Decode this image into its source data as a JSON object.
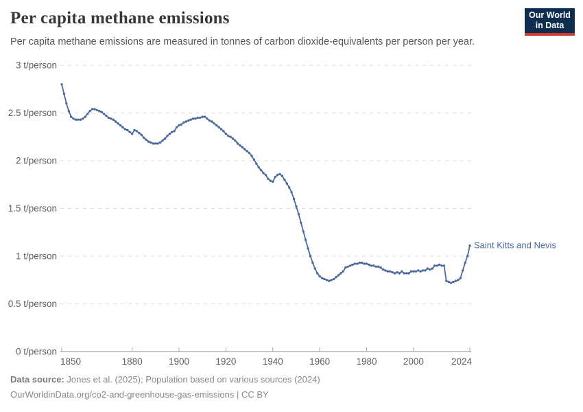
{
  "header": {
    "title": "Per capita methane emissions",
    "subtitle": "Per capita methane emissions are measured in tonnes of carbon dioxide-equivalents per person per year."
  },
  "logo": {
    "line1": "Our World",
    "line2": "in Data",
    "bg_color": "#0d2e4e",
    "bar_color": "#d0382e"
  },
  "chart_data": {
    "type": "line",
    "title": "Per capita methane emissions",
    "unit": "t/person",
    "xlabel": "",
    "ylabel": "t/person",
    "xlim": [
      1850,
      2024
    ],
    "ylim": [
      0,
      3
    ],
    "grid": true,
    "line_color": "#4C6A9C",
    "axis_text_color": "#5e5e5e",
    "grid_color": "#dcdcdc",
    "axis_line_color": "#a3a3a3",
    "x_ticks": [
      1850,
      1880,
      1900,
      1920,
      1940,
      1960,
      1980,
      2000,
      2024
    ],
    "y_ticks": [
      {
        "value": 0,
        "label": "0 t/person"
      },
      {
        "value": 0.5,
        "label": "0.5 t/person"
      },
      {
        "value": 1,
        "label": "1 t/person"
      },
      {
        "value": 1.5,
        "label": "1.5 t/person"
      },
      {
        "value": 2,
        "label": "2 t/person"
      },
      {
        "value": 2.5,
        "label": "2.5 t/person"
      },
      {
        "value": 3,
        "label": "3 t/person"
      }
    ],
    "series": [
      {
        "name": "Saint Kitts and Nevis",
        "x_start": 1850,
        "x_step": 1,
        "values": [
          2.8,
          2.7,
          2.6,
          2.52,
          2.46,
          2.44,
          2.43,
          2.43,
          2.43,
          2.44,
          2.46,
          2.49,
          2.52,
          2.54,
          2.54,
          2.53,
          2.52,
          2.51,
          2.49,
          2.47,
          2.45,
          2.44,
          2.43,
          2.41,
          2.39,
          2.37,
          2.35,
          2.33,
          2.32,
          2.3,
          2.28,
          2.32,
          2.31,
          2.29,
          2.27,
          2.24,
          2.22,
          2.2,
          2.19,
          2.18,
          2.18,
          2.18,
          2.19,
          2.21,
          2.23,
          2.26,
          2.28,
          2.3,
          2.31,
          2.35,
          2.37,
          2.38,
          2.4,
          2.41,
          2.42,
          2.43,
          2.44,
          2.44,
          2.45,
          2.45,
          2.46,
          2.46,
          2.44,
          2.42,
          2.41,
          2.39,
          2.37,
          2.35,
          2.33,
          2.31,
          2.28,
          2.26,
          2.25,
          2.23,
          2.21,
          2.18,
          2.16,
          2.14,
          2.12,
          2.1,
          2.08,
          2.05,
          2.01,
          1.97,
          1.93,
          1.9,
          1.87,
          1.85,
          1.81,
          1.79,
          1.78,
          1.83,
          1.85,
          1.86,
          1.84,
          1.8,
          1.76,
          1.72,
          1.67,
          1.6,
          1.52,
          1.44,
          1.35,
          1.26,
          1.17,
          1.08,
          1.0,
          0.93,
          0.87,
          0.82,
          0.79,
          0.77,
          0.76,
          0.75,
          0.74,
          0.75,
          0.76,
          0.78,
          0.8,
          0.82,
          0.84,
          0.88,
          0.89,
          0.9,
          0.91,
          0.92,
          0.92,
          0.93,
          0.93,
          0.92,
          0.92,
          0.91,
          0.9,
          0.9,
          0.89,
          0.89,
          0.88,
          0.86,
          0.85,
          0.84,
          0.84,
          0.83,
          0.82,
          0.83,
          0.82,
          0.84,
          0.82,
          0.82,
          0.82,
          0.84,
          0.84,
          0.84,
          0.85,
          0.84,
          0.85,
          0.85,
          0.87,
          0.86,
          0.87,
          0.9,
          0.9,
          0.91,
          0.9,
          0.9,
          0.74,
          0.73,
          0.72,
          0.73,
          0.74,
          0.75,
          0.77,
          0.85,
          0.93,
          1.0,
          1.11
        ]
      }
    ]
  },
  "footer": {
    "source_label": "Data source:",
    "source_text": " Jones et al. (2025); Population based on various sources (2024)",
    "url": "OurWorldinData.org/co2-and-greenhouse-gas-emissions",
    "license": " | CC BY"
  }
}
